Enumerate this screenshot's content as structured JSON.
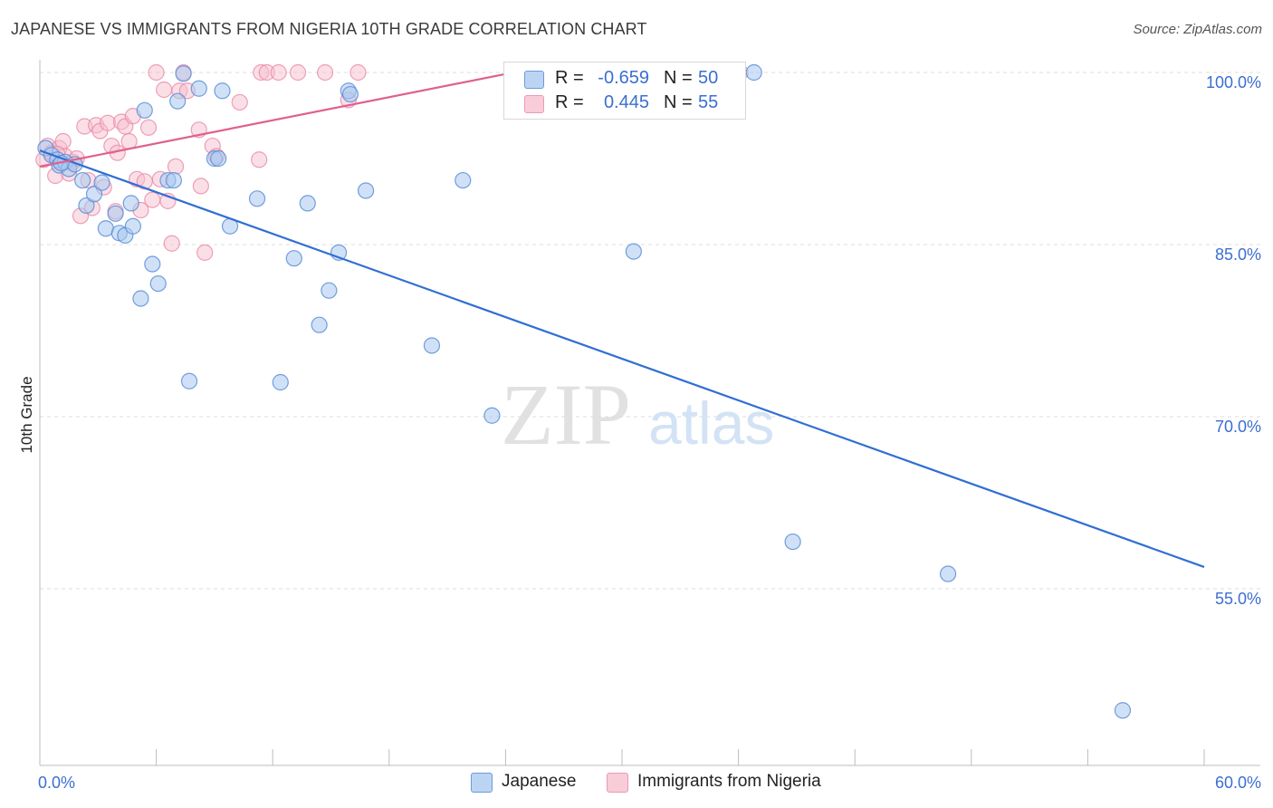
{
  "title": "JAPANESE VS IMMIGRANTS FROM NIGERIA 10TH GRADE CORRELATION CHART",
  "source": "Source: ZipAtlas.com",
  "watermark": {
    "zip": "ZIP",
    "atlas": "atlas"
  },
  "colors": {
    "japanese_fill": "#a9c8f0",
    "japanese_stroke": "#5b8fd6",
    "japanese_line": "#2f6fd3",
    "nigeria_fill": "#f7bfd0",
    "nigeria_stroke": "#e98aa8",
    "nigeria_line": "#e0608c",
    "tick_label": "#3b6fd0",
    "grid": "#dcdcdc"
  },
  "legend": {
    "japanese": {
      "r_label": "R =",
      "r_value": "-0.659",
      "n_label": "N =",
      "n_value": "50"
    },
    "nigeria": {
      "r_label": "R =",
      "r_value": "0.445",
      "n_label": "N =",
      "n_value": "55"
    }
  },
  "bottom_legend": {
    "japanese": "Japanese",
    "nigeria": "Immigrants from Nigeria"
  },
  "chart_data": {
    "type": "scatter",
    "title": "JAPANESE VS IMMIGRANTS FROM NIGERIA 10TH GRADE CORRELATION CHART",
    "xlabel": "",
    "ylabel": "10th Grade",
    "xlim": [
      0,
      60
    ],
    "ylim": [
      42,
      101.5
    ],
    "x_tick_labels": [
      {
        "value": 0,
        "label": "0.0%"
      },
      {
        "value": 60,
        "label": "60.0%"
      }
    ],
    "y_tick_labels": [
      {
        "value": 100,
        "label": "100.0%"
      },
      {
        "value": 85,
        "label": "85.0%"
      },
      {
        "value": 70,
        "label": "70.0%"
      },
      {
        "value": 55,
        "label": "55.0%"
      }
    ],
    "grid": true,
    "legend_position": "top-center",
    "series": [
      {
        "name": "Japanese",
        "r": -0.659,
        "n": 50,
        "trend": {
          "x": [
            0,
            60
          ],
          "y": [
            93.2,
            56.9
          ]
        },
        "points": [
          [
            0.3,
            93.4
          ],
          [
            0.6,
            92.8
          ],
          [
            0.9,
            92.4
          ],
          [
            1.0,
            91.9
          ],
          [
            1.3,
            92.2
          ],
          [
            1.5,
            91.6
          ],
          [
            1.8,
            92.0
          ],
          [
            2.2,
            90.6
          ],
          [
            2.4,
            88.4
          ],
          [
            2.8,
            89.4
          ],
          [
            3.2,
            90.4
          ],
          [
            3.4,
            86.4
          ],
          [
            3.9,
            87.7
          ],
          [
            4.1,
            86.0
          ],
          [
            4.4,
            85.8
          ],
          [
            4.7,
            88.6
          ],
          [
            4.8,
            86.6
          ],
          [
            5.2,
            80.3
          ],
          [
            5.4,
            96.7
          ],
          [
            5.8,
            83.3
          ],
          [
            6.1,
            81.6
          ],
          [
            6.6,
            90.6
          ],
          [
            6.9,
            90.6
          ],
          [
            7.1,
            97.5
          ],
          [
            7.4,
            99.9
          ],
          [
            7.7,
            73.1
          ],
          [
            8.2,
            98.6
          ],
          [
            9.0,
            92.5
          ],
          [
            9.2,
            92.5
          ],
          [
            9.4,
            98.4
          ],
          [
            9.8,
            86.6
          ],
          [
            11.2,
            89.0
          ],
          [
            12.4,
            73.0
          ],
          [
            13.1,
            83.8
          ],
          [
            13.8,
            88.6
          ],
          [
            14.4,
            78.0
          ],
          [
            14.9,
            81.0
          ],
          [
            15.4,
            84.3
          ],
          [
            15.9,
            98.4
          ],
          [
            16.0,
            98.1
          ],
          [
            16.8,
            89.7
          ],
          [
            20.2,
            76.2
          ],
          [
            21.8,
            90.6
          ],
          [
            23.3,
            70.1
          ],
          [
            30.6,
            84.4
          ],
          [
            36.8,
            100.0
          ],
          [
            38.8,
            59.1
          ],
          [
            46.8,
            56.3
          ],
          [
            55.8,
            44.4
          ],
          [
            1.1,
            92.1
          ]
        ]
      },
      {
        "name": "Immigrants from Nigeria",
        "r": 0.445,
        "n": 55,
        "trend": {
          "x": [
            0,
            25
          ],
          "y": [
            91.8,
            100.2
          ]
        },
        "points": [
          [
            0.2,
            92.4
          ],
          [
            0.4,
            93.6
          ],
          [
            0.6,
            93.0
          ],
          [
            0.8,
            91.0
          ],
          [
            1.0,
            93.4
          ],
          [
            1.2,
            94.0
          ],
          [
            1.3,
            92.7
          ],
          [
            1.5,
            91.2
          ],
          [
            1.7,
            92.2
          ],
          [
            1.9,
            92.5
          ],
          [
            2.1,
            87.5
          ],
          [
            2.3,
            95.3
          ],
          [
            2.5,
            90.6
          ],
          [
            2.7,
            88.2
          ],
          [
            2.9,
            95.4
          ],
          [
            3.1,
            94.9
          ],
          [
            3.3,
            90.0
          ],
          [
            3.5,
            95.6
          ],
          [
            3.7,
            93.6
          ],
          [
            3.9,
            87.9
          ],
          [
            4.0,
            93.0
          ],
          [
            4.2,
            95.7
          ],
          [
            4.4,
            95.3
          ],
          [
            4.6,
            94.0
          ],
          [
            4.8,
            96.2
          ],
          [
            5.0,
            90.7
          ],
          [
            5.2,
            88.0
          ],
          [
            5.4,
            90.5
          ],
          [
            5.6,
            95.2
          ],
          [
            5.8,
            88.9
          ],
          [
            6.0,
            100.0
          ],
          [
            6.2,
            90.7
          ],
          [
            6.4,
            98.5
          ],
          [
            6.6,
            88.8
          ],
          [
            6.8,
            85.1
          ],
          [
            7.0,
            91.8
          ],
          [
            7.2,
            98.4
          ],
          [
            7.4,
            100.0
          ],
          [
            7.6,
            98.4
          ],
          [
            8.2,
            95.0
          ],
          [
            8.3,
            90.1
          ],
          [
            8.5,
            84.3
          ],
          [
            8.9,
            93.6
          ],
          [
            9.1,
            92.7
          ],
          [
            10.3,
            97.4
          ],
          [
            11.3,
            92.4
          ],
          [
            11.4,
            100.0
          ],
          [
            11.7,
            100.0
          ],
          [
            12.3,
            100.0
          ],
          [
            13.3,
            100.0
          ],
          [
            14.7,
            100.0
          ],
          [
            15.9,
            97.6
          ],
          [
            16.4,
            100.0
          ],
          [
            36.1,
            100.0
          ],
          [
            0.9,
            92.9
          ]
        ]
      }
    ]
  }
}
